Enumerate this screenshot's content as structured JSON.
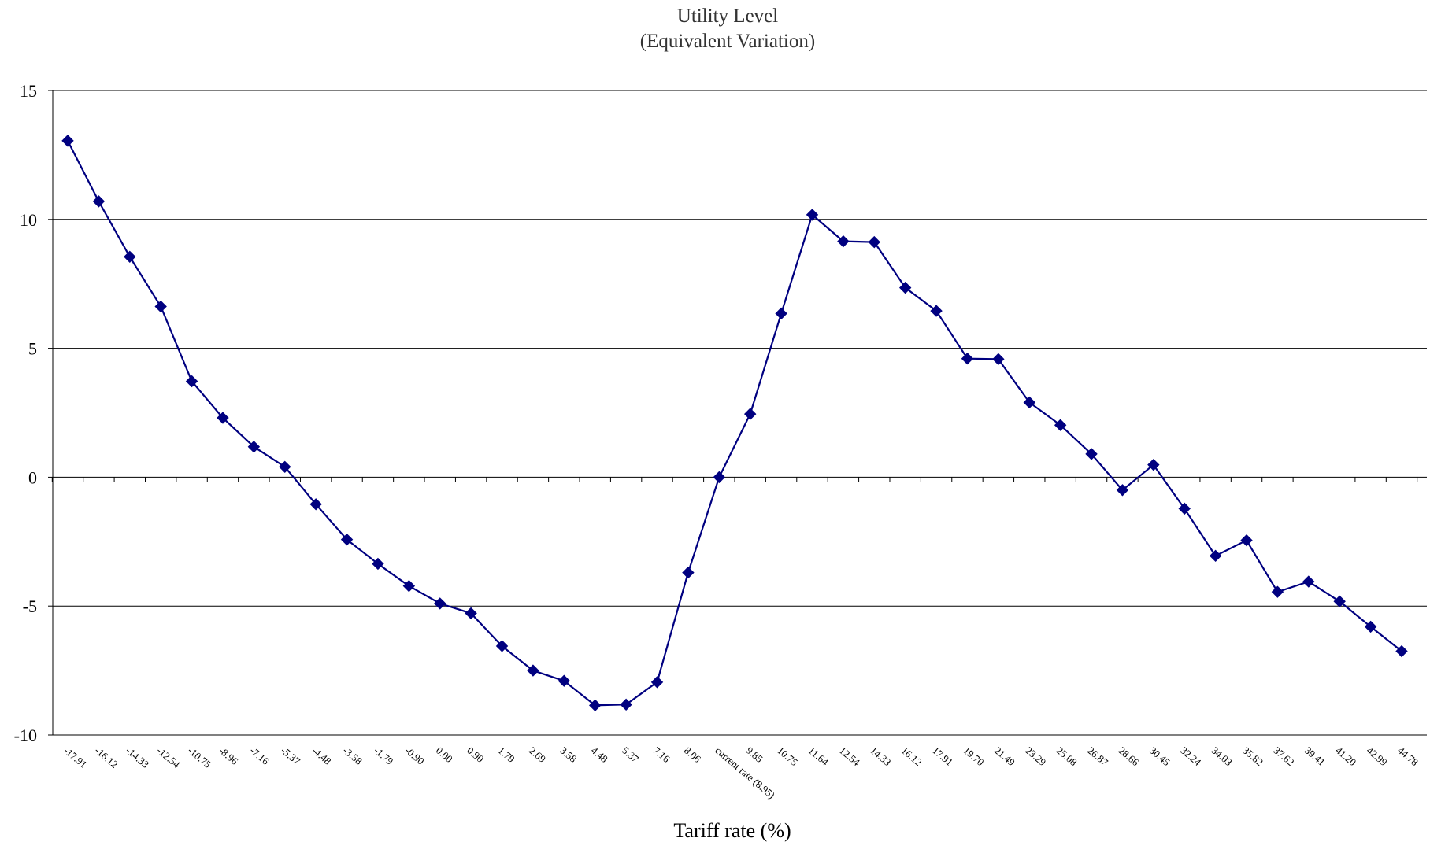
{
  "chart_data": {
    "type": "line",
    "title": "Utility Level",
    "subtitle": "(Equivalent Variation)",
    "xlabel": "Tariff rate (%)",
    "ylabel": "",
    "ylim": [
      -10,
      15
    ],
    "yticks": [
      "15",
      "10",
      "5",
      "0",
      "-5",
      "-10"
    ],
    "grid": true,
    "series_color": "#000080",
    "categories": [
      "-17.91",
      "-16.12",
      "-14.33",
      "-12.54",
      "-10.75",
      "-8.96",
      "-7.16",
      "-5.37",
      "-4.48",
      "-3.58",
      "-1.79",
      "-0.90",
      "0.00",
      "0.90",
      "1.79",
      "2.69",
      "3.58",
      "4.48",
      "5.37",
      "7.16",
      "8.06",
      "current rate (8.95)",
      "9.85",
      "10.75",
      "11.64",
      "12.54",
      "14.33",
      "16.12",
      "17.91",
      "19.70",
      "21.49",
      "23.29",
      "25.08",
      "26.87",
      "28.66",
      "30.45",
      "32.24",
      "34.03",
      "35.82",
      "37.62",
      "39.41",
      "41.20",
      "42.99",
      "44.78"
    ],
    "series": [
      {
        "values": [
          13.05,
          10.7,
          8.55,
          6.62,
          3.72,
          2.3,
          1.18,
          0.4,
          -1.05,
          -2.42,
          -3.36,
          -4.22,
          -4.9,
          -5.28,
          -6.55,
          -7.5,
          -7.9,
          -8.85,
          -8.82,
          -7.95,
          -3.7,
          0.0,
          2.45,
          6.35,
          10.18,
          9.15,
          9.12,
          7.35,
          6.45,
          4.6,
          4.58,
          2.9,
          2.02,
          0.9,
          -0.5,
          0.48,
          -1.22,
          -3.05,
          -2.45,
          -4.45,
          -4.05,
          -4.82,
          -5.8,
          -6.75
        ]
      }
    ]
  }
}
